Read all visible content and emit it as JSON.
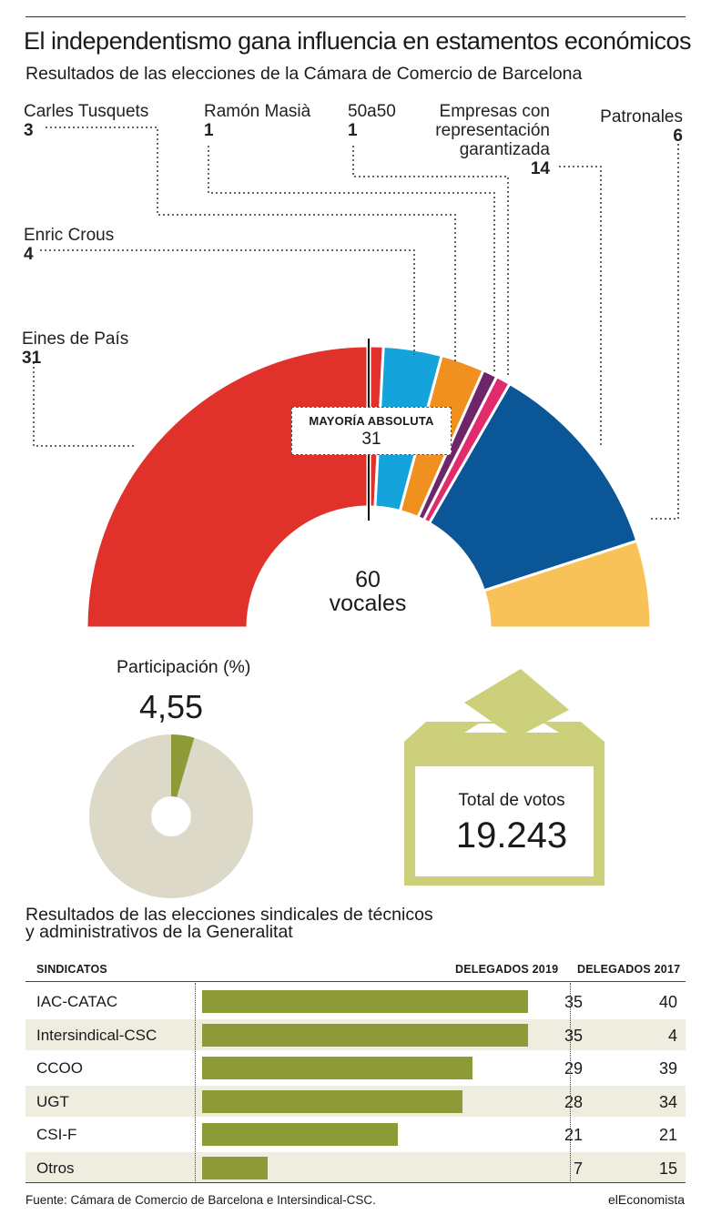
{
  "title": "El independentismo gana influencia en estamentos económicos",
  "subtitle": "Resultados de las elecciones de la Cámara de Comercio de Barcelona",
  "chart_data": [
    {
      "type": "pie",
      "total_label": "60",
      "total_unit": "vocales",
      "majority": {
        "label": "MAYORÍA ABSOLUTA",
        "value": "31"
      },
      "labels": [
        {
          "name": "Eines de País",
          "value": "31"
        },
        {
          "name": "Enric Crous",
          "value": "4"
        },
        {
          "name": "Carles Tusquets",
          "value": "3"
        },
        {
          "name": "Ramón Masià",
          "value": "1"
        },
        {
          "name": "50a50",
          "value": "1"
        },
        {
          "name": "Empresas con representación garantizada",
          "value": "14"
        },
        {
          "name": "Patronales",
          "value": "6"
        }
      ],
      "slices": [
        {
          "value": 31,
          "color": "#e0322b"
        },
        {
          "value": 4,
          "color": "#15a3dc"
        },
        {
          "value": 3,
          "color": "#f0901e"
        },
        {
          "value": 1,
          "color": "#6f2669"
        },
        {
          "value": 1,
          "color": "#e02c6c"
        },
        {
          "value": 14,
          "color": "#0b5696"
        },
        {
          "value": 6,
          "color": "#f9c258"
        }
      ]
    },
    {
      "type": "pie",
      "title": "Participación (%)",
      "value_label": "4,55",
      "value": 4.55,
      "colors": {
        "part": "#8c9a38",
        "rest": "#dcd9c8"
      }
    },
    {
      "type": "bar",
      "title": "Resultados de las elecciones sindicales de técnicos y administrativos de la Generalitat",
      "title_lines": [
        "Resultados de las elecciones sindicales de técnicos",
        "y administrativos de la Generalitat"
      ],
      "headers": [
        "SINDICATOS",
        "DELEGADOS 2019",
        "DELEGADOS 2017"
      ],
      "categories": [
        "IAC-CATAC",
        "Intersindical-CSC",
        "CCOO",
        "UGT",
        "CSI-F",
        "Otros"
      ],
      "series": [
        {
          "name": "DELEGADOS 2019",
          "values": [
            35,
            35,
            29,
            28,
            21,
            7
          ]
        },
        {
          "name": "DELEGADOS 2017",
          "values": [
            40,
            4,
            39,
            34,
            21,
            15
          ]
        }
      ],
      "bar_color": "#8c9a38"
    }
  ],
  "votes": {
    "label": "Total de votos",
    "value": "19.243"
  },
  "box_color": "#cdd07a",
  "source": "Fuente: Cámara de Comercio de Barcelona e Intersindical-CSC.",
  "brand": "elEconomista"
}
